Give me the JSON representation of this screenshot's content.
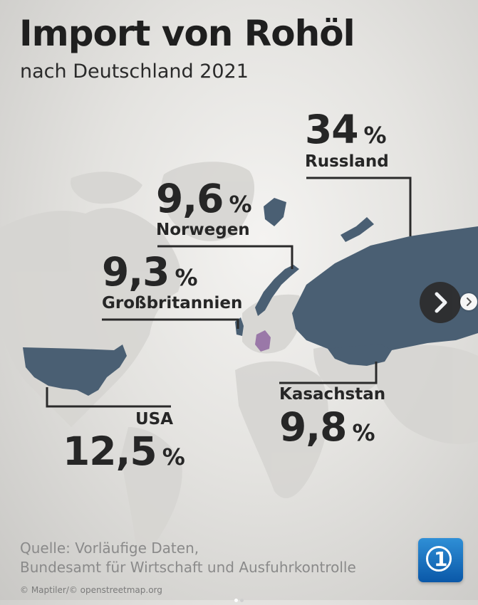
{
  "header": {
    "title": "Import von Rohöl",
    "subtitle": "nach Deutschland 2021"
  },
  "imports": {
    "russland": {
      "country": "Russland",
      "value": "34",
      "unit": "%"
    },
    "norwegen": {
      "country": "Norwegen",
      "value": "9,6",
      "unit": "%"
    },
    "grossbritannien": {
      "country": "Großbritannien",
      "value": "9,3",
      "unit": "%"
    },
    "usa": {
      "country": "USA",
      "value": "12,5",
      "unit": "%"
    },
    "kasachstan": {
      "country": "Kasachstan",
      "value": "9,8",
      "unit": "%"
    }
  },
  "footer": {
    "source_line1": "Quelle: Vorläufige Daten,",
    "source_line2": "Bundesamt für Wirtschaft und Ausfuhrkontrolle",
    "credit": "© Maptiler/© openstreetmap.org"
  },
  "colors": {
    "highlight_country": "#4a5f73",
    "germany": "#9a78a8",
    "land": "#d4d3d0",
    "leader_line": "#2a2a2a"
  },
  "carousel": {
    "slide_count": 2,
    "active_slide": 1
  },
  "icons": {
    "next": "chevron-right-icon",
    "logo": "tagesschau-logo"
  }
}
